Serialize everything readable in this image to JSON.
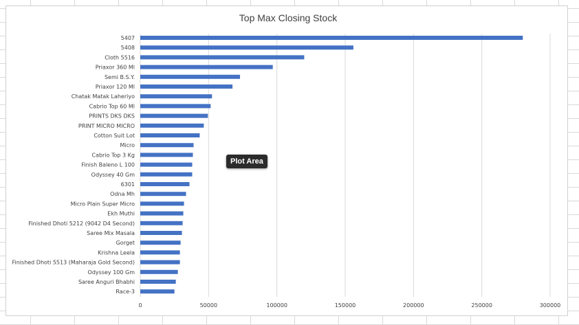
{
  "tooltip": "Plot Area",
  "chart_data": {
    "type": "bar",
    "orientation": "horizontal",
    "title": "Top Max Closing Stock",
    "xlim": [
      0,
      300000
    ],
    "xticks": [
      0,
      50000,
      100000,
      150000,
      200000,
      250000,
      300000
    ],
    "xtick_labels": [
      "0",
      "50000",
      "100000",
      "150000",
      "200000",
      "250000",
      "300000"
    ],
    "grid": true,
    "bar_color": "#4472c4",
    "categories": [
      "5407",
      "5408",
      "Cloth 5516",
      "Priaxor 360 Ml",
      "Semi B.S.Y.",
      "Priaxor 120 Ml",
      "Chatak Matak Laheriyo",
      "Cabrio Top 60 Ml",
      "PRINTS DKS DKS",
      "PRINT MICRO MICRO",
      "Cotton Suit Lot",
      "Micro",
      "Cabrio Top 3 Kg",
      "Finish Baleno L 100",
      "Odyssey 40 Gm",
      "6301",
      "Odna Mh",
      "Micro Plain Super Micro",
      "Ekh Muthi",
      "Finished Dhoti 5212 (9042 D4 Second)",
      "Saree Mix Masala",
      "Gorget",
      "Krishna  Leela",
      "Finished Dhoti 5513 (Maharaja Gold Second)",
      "Odyssey 100 Gm",
      "Saree Anguri Bhabhi",
      "Race-3"
    ],
    "values": [
      280000,
      156000,
      120000,
      97000,
      73000,
      67500,
      52500,
      51500,
      49500,
      46500,
      43500,
      39000,
      38500,
      38000,
      38000,
      36000,
      33500,
      32000,
      31500,
      31000,
      30500,
      29500,
      29000,
      29000,
      27500,
      26000,
      25000
    ]
  }
}
